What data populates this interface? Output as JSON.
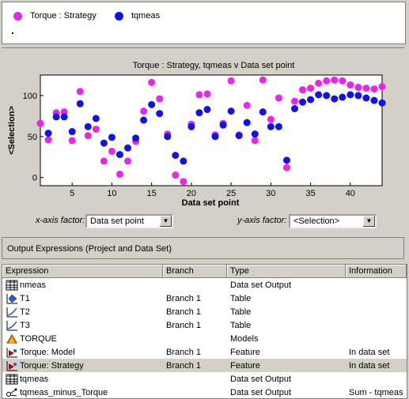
{
  "legend": {
    "items": [
      {
        "label": "Torque : Strategy",
        "color": "#ee22ee"
      },
      {
        "label": "tqmeas",
        "color": "#1111ee"
      }
    ]
  },
  "chart_data": {
    "type": "scatter",
    "title": "Torque : Strategy, tqmeas v Data set point",
    "xlabel": "Data set point",
    "ylabel": "<Selection>",
    "xlim": [
      1,
      44
    ],
    "ylim": [
      -10,
      125
    ],
    "xticks": [
      5,
      10,
      15,
      20,
      25,
      30,
      35,
      40
    ],
    "yticks": [
      0,
      50,
      100
    ],
    "grid": false,
    "series": [
      {
        "name": "Torque : Strategy",
        "color": "#ee22ee",
        "x": [
          1,
          2,
          3,
          4,
          5,
          6,
          7,
          8,
          9,
          10,
          11,
          12,
          13,
          14,
          15,
          16,
          17,
          18,
          19,
          20,
          21,
          22,
          23,
          24,
          25,
          26,
          27,
          28,
          29,
          30,
          31,
          32,
          33,
          34,
          35,
          36,
          37,
          38,
          39,
          40,
          41,
          42,
          43,
          44
        ],
        "values": [
          66,
          46,
          79,
          80,
          45,
          105,
          51,
          59,
          20,
          32,
          4,
          20,
          44,
          81,
          116,
          96,
          53,
          3,
          -5,
          65,
          101,
          102,
          52,
          66,
          118,
          52,
          88,
          45,
          119,
          71,
          97,
          12,
          93,
          107,
          109,
          115,
          118,
          119,
          118,
          113,
          110,
          109,
          108,
          111
        ]
      },
      {
        "name": "tqmeas",
        "color": "#1111ee",
        "x": [
          2,
          3,
          4,
          5,
          6,
          7,
          8,
          9,
          10,
          11,
          12,
          13,
          14,
          15,
          16,
          17,
          18,
          19,
          20,
          21,
          22,
          23,
          24,
          25,
          26,
          27,
          28,
          29,
          30,
          31,
          32,
          33,
          34,
          35,
          36,
          37,
          38,
          39,
          40,
          41,
          42,
          43,
          44
        ],
        "values": [
          54,
          74,
          74,
          56,
          90,
          62,
          72,
          42,
          49,
          28,
          36,
          48,
          70,
          89,
          78,
          50,
          27,
          20,
          62,
          79,
          83,
          50,
          64,
          81,
          51,
          67,
          53,
          80,
          62,
          62,
          21,
          84,
          92,
          95,
          101,
          100,
          96,
          98,
          101,
          100,
          97,
          94,
          91
        ]
      }
    ]
  },
  "controls": {
    "x_factor_label": "x-axis factor:",
    "x_factor_value": "Data set point",
    "y_factor_label": "y-axis factor:",
    "y_factor_value": "<Selection>"
  },
  "output": {
    "title": "Output Expressions (Project and Data Set)",
    "columns": [
      "Expression",
      "Branch",
      "Type",
      "Information"
    ],
    "rows": [
      {
        "icon": "table-grid-icon",
        "expression": "nmeas",
        "branch": "",
        "type": "Data set Output",
        "info": ""
      },
      {
        "icon": "table-diamond-icon",
        "expression": "T1",
        "branch": "Branch 1",
        "type": "Table",
        "info": ""
      },
      {
        "icon": "table-curve-icon",
        "expression": "T2",
        "branch": "Branch 1",
        "type": "Table",
        "info": ""
      },
      {
        "icon": "table-curve-icon",
        "expression": "T3",
        "branch": "Branch 1",
        "type": "Table",
        "info": ""
      },
      {
        "icon": "models-icon",
        "expression": "TORQUE",
        "branch": "",
        "type": "Models",
        "info": ""
      },
      {
        "icon": "feature-icon",
        "expression": "Torque: Model",
        "branch": "Branch 1",
        "type": "Feature",
        "info": "In data set"
      },
      {
        "icon": "feature-icon",
        "expression": "Torque: Strategy",
        "branch": "Branch 1",
        "type": "Feature",
        "info": "In data set",
        "selected": true
      },
      {
        "icon": "table-grid-icon",
        "expression": "tqmeas",
        "branch": "",
        "type": "Data set Output",
        "info": ""
      },
      {
        "icon": "expression-icon",
        "expression": "tqmeas_minus_Torque",
        "branch": "",
        "type": "Data set Output",
        "info": "Sum - tqmeas"
      }
    ]
  }
}
